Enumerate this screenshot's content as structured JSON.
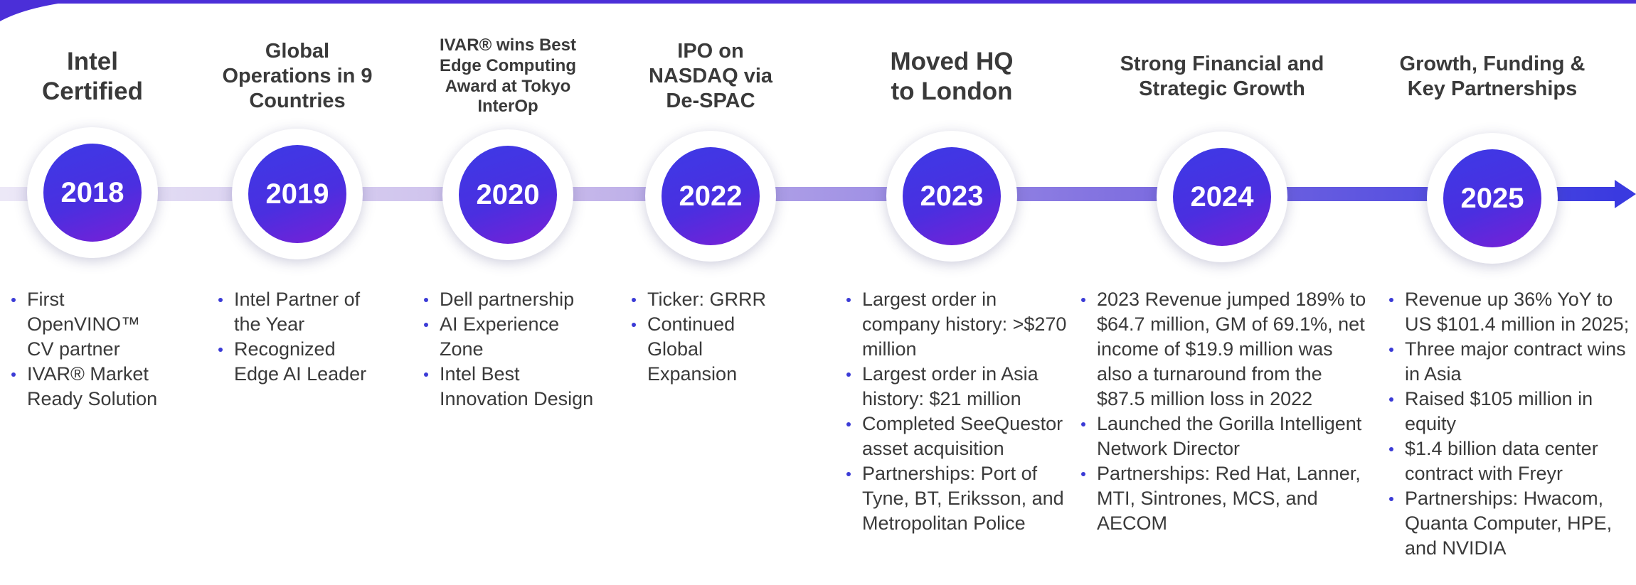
{
  "milestones": [
    {
      "year": "2018",
      "title": "Intel Certified",
      "bullets": [
        "First OpenVINO™ CV partner",
        "IVAR® Market Ready Solution"
      ]
    },
    {
      "year": "2019",
      "title": "Global Operations in 9 Countries",
      "bullets": [
        "Intel Partner of the Year",
        "Recognized Edge AI Leader"
      ]
    },
    {
      "year": "2020",
      "title": "IVAR® wins Best Edge Computing Award at Tokyo InterOp",
      "bullets": [
        "Dell partnership",
        "AI Experience Zone",
        "Intel Best Innovation Design"
      ]
    },
    {
      "year": "2022",
      "title": "IPO on NASDAQ via De-SPAC",
      "bullets": [
        "Ticker: GRRR",
        "Continued Global Expansion"
      ]
    },
    {
      "year": "2023",
      "title": "Moved HQ to London",
      "bullets": [
        "Largest order in company history: >$270 million",
        "Largest order in Asia history: $21 million",
        "Completed SeeQuestor asset acquisition",
        "Partnerships: Port of Tyne, BT, Eriksson, and Metropolitan Police"
      ]
    },
    {
      "year": "2024",
      "title": "Strong Financial and Strategic Growth",
      "bullets": [
        "2023 Revenue jumped 189% to $64.7 million, GM of 69.1%, net income of $19.9 million was also a turnaround from the $87.5 million loss in 2022",
        "Launched the Gorilla Intelligent Network Director",
        "Partnerships: Red Hat, Lanner, MTI, Sintrones, MCS, and AECOM"
      ]
    },
    {
      "year": "2025",
      "title": "Growth, Funding & Key Partnerships",
      "bullets": [
        "Revenue up 36% YoY to US $101.4 million in 2025;",
        "Three major contract wins in Asia",
        "Raised $105 million in equity",
        "$1.4 billion data center contract with Freyr",
        "Partnerships:  Hwacom, Quanta Computer, HPE, and NVIDIA"
      ]
    }
  ]
}
